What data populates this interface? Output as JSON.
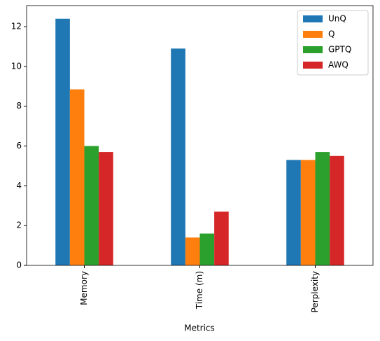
{
  "chart_data": {
    "type": "bar",
    "x_label": "Metrics",
    "categories": [
      "Memory",
      "Time (m)",
      "Perplexity"
    ],
    "series": [
      {
        "name": "UnQ",
        "color": "#1f77b4",
        "values": [
          12.4,
          10.9,
          5.3
        ]
      },
      {
        "name": "Q",
        "color": "#ff7f0e",
        "values": [
          8.85,
          1.4,
          5.3
        ]
      },
      {
        "name": "GPTQ",
        "color": "#2ca02c",
        "values": [
          6.0,
          1.6,
          5.7
        ]
      },
      {
        "name": "AWQ",
        "color": "#d62728",
        "values": [
          5.7,
          2.7,
          5.5
        ]
      }
    ],
    "ylim": [
      0,
      13.06
    ],
    "yticks": [
      0,
      2,
      4,
      6,
      8,
      10,
      12
    ],
    "grid": false,
    "legend": "upper right"
  }
}
